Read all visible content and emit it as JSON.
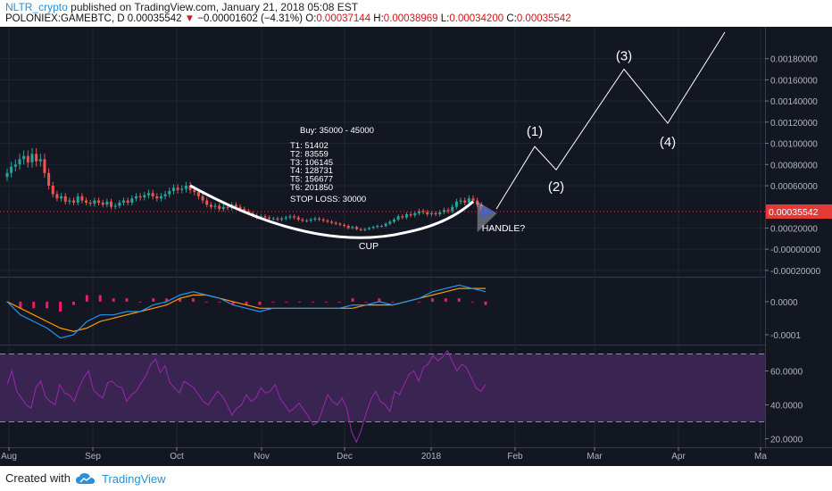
{
  "header": {
    "author": "NLTR_crypto",
    "published_text": "published on TradingView.com, January 21, 2018 05:08 EST",
    "symbol": "POLONIEX:GAMEBTC, D",
    "last": "0.00035542",
    "change_arrow": "▼",
    "change": "−0.00001602 (−4.31%)",
    "ohlc": {
      "o_label": "O:",
      "o": "0.00037144",
      "h_label": "H:",
      "h": "0.00038969",
      "l_label": "L:",
      "l": "0.00034200",
      "c_label": "C:",
      "c": "0.00035542"
    }
  },
  "footer": {
    "created_with": "Created with",
    "brand": "TradingView"
  },
  "colors": {
    "background": "#131722",
    "up_candle": "#26a69a",
    "down_candle": "#ef5350",
    "macd_line": "#2196f3",
    "signal_line": "#ff9800",
    "histogram": "#e91e63",
    "rsi_line": "#9c27b0",
    "rsi_band": "#3a2451",
    "price_label": "#e53935",
    "annotation": "#ffffff"
  },
  "chart_data": {
    "type": "candlestick",
    "x_tick_labels": [
      "Aug",
      "Sep",
      "Oct",
      "Nov",
      "Dec",
      "2018",
      "Feb",
      "Mar",
      "Apr",
      "Ma"
    ],
    "price_axis": {
      "ticks": [
        "0.00180000",
        "0.00160000",
        "0.00140000",
        "0.00120000",
        "0.00100000",
        "0.00080000",
        "0.00060000",
        "0.00020000",
        "-0.00000000",
        "-0.00020000"
      ],
      "tick_values": [
        0.0018,
        0.0016,
        0.0014,
        0.0012,
        0.001,
        0.0008,
        0.0006,
        0.0002,
        0.0,
        -0.0002
      ],
      "last_price_label": "0.00035542",
      "last_price": 0.00035542,
      "ylim": [
        -0.00026,
        0.00205
      ]
    },
    "price_series": {
      "name": "GAMEBTC",
      "closes": [
        0.00072,
        0.00078,
        0.0008,
        0.00085,
        0.00088,
        0.00082,
        0.0009,
        0.00083,
        0.00085,
        0.00072,
        0.0006,
        0.00052,
        0.00048,
        0.0005,
        0.00045,
        0.00046,
        0.00044,
        0.0005,
        0.00046,
        0.00044,
        0.00043,
        0.00046,
        0.00044,
        0.00042,
        0.00045,
        0.0004,
        0.00041,
        0.00044,
        0.00046,
        0.00044,
        0.00048,
        0.0005,
        0.00049,
        0.00051,
        0.00053,
        0.0005,
        0.00048,
        0.0005,
        0.00052,
        0.00055,
        0.00058,
        0.00056,
        0.00057,
        0.0006,
        0.00056,
        0.00054,
        0.0005,
        0.00046,
        0.00042,
        0.0004,
        0.00041,
        0.00038,
        0.0004,
        0.00039,
        0.00042,
        0.0004,
        0.00038,
        0.00036,
        0.00034,
        0.00032,
        0.0003,
        0.00031,
        0.0003,
        0.00029,
        0.00029,
        0.00028,
        0.00029,
        0.0003,
        0.00031,
        0.0003,
        0.00028,
        0.00027,
        0.00027,
        0.00028,
        0.00029,
        0.00028,
        0.00027,
        0.00026,
        0.00025,
        0.00024,
        0.00023,
        0.00022,
        0.0002,
        0.00021,
        0.00019,
        0.00018,
        0.00019,
        0.0002,
        0.00021,
        0.00022,
        0.00022,
        0.00024,
        0.00026,
        0.00028,
        0.00031,
        0.0003,
        0.00033,
        0.00032,
        0.00034,
        0.00036,
        0.00035,
        0.00033,
        0.00034,
        0.00033,
        0.00035,
        0.00037,
        0.00036,
        0.0004,
        0.00045,
        0.00046,
        0.00044,
        0.00048,
        0.00046,
        0.00042,
        0.00037,
        0.00036
      ]
    },
    "macd": {
      "axis_ticks": [
        "0.0000",
        "-0.0001"
      ],
      "axis_values": [
        0.0,
        -0.0001
      ],
      "ylim": [
        -0.00013,
        7e-05
      ],
      "macd_line": [
        0.0,
        -4e-05,
        -6e-05,
        -8e-05,
        -0.00011,
        -0.0001,
        -6e-05,
        -4e-05,
        -4e-05,
        -3e-05,
        -3e-05,
        -1e-05,
        0.0,
        2e-05,
        3e-05,
        2e-05,
        1e-05,
        -1e-05,
        -2e-05,
        -3e-05,
        -2e-05,
        -2e-05,
        -2e-05,
        -2e-05,
        -2e-05,
        -2e-05,
        -1e-05,
        -1e-05,
        0.0,
        -1e-05,
        0.0,
        1e-05,
        3e-05,
        4e-05,
        5e-05,
        4e-05,
        3e-05
      ],
      "signal_line": [
        0.0,
        -2e-05,
        -4e-05,
        -6e-05,
        -8e-05,
        -9e-05,
        -8e-05,
        -6e-05,
        -5e-05,
        -4e-05,
        -3e-05,
        -2e-05,
        -1e-05,
        1e-05,
        2e-05,
        2e-05,
        1e-05,
        0.0,
        -1e-05,
        -2e-05,
        -2e-05,
        -2e-05,
        -2e-05,
        -2e-05,
        -2e-05,
        -2e-05,
        -2e-05,
        -1e-05,
        -1e-05,
        -1e-05,
        0.0,
        1e-05,
        2e-05,
        3e-05,
        4e-05,
        4e-05,
        4e-05
      ],
      "histogram": [
        0.0,
        -2e-05,
        -2e-05,
        -2e-05,
        -3e-05,
        -1e-05,
        2e-05,
        2e-05,
        1e-05,
        1e-05,
        0.0,
        1e-05,
        1e-05,
        1e-05,
        1e-05,
        0.0,
        0.0,
        -1e-05,
        -1e-05,
        -1e-05,
        0.0,
        0.0,
        0.0,
        0.0,
        0.0,
        0.0,
        1e-05,
        0.0,
        1e-05,
        0.0,
        0.0,
        0.0,
        1e-05,
        1e-05,
        1e-05,
        0.0,
        -1e-05
      ]
    },
    "rsi": {
      "axis_ticks": [
        "60.0000",
        "40.0000",
        "20.0000"
      ],
      "axis_values": [
        60,
        40,
        20
      ],
      "band": [
        30,
        70
      ],
      "ylim": [
        15,
        75
      ],
      "values": [
        52,
        60,
        48,
        44,
        40,
        38,
        50,
        54,
        45,
        42,
        40,
        52,
        47,
        46,
        42,
        50,
        56,
        60,
        49,
        46,
        44,
        53,
        54,
        51,
        50,
        42,
        46,
        48,
        53,
        57,
        64,
        67,
        59,
        63,
        53,
        50,
        47,
        54,
        52,
        50,
        46,
        42,
        40,
        44,
        48,
        45,
        40,
        34,
        38,
        40,
        46,
        42,
        44,
        50,
        47,
        48,
        52,
        44,
        40,
        36,
        38,
        41,
        37,
        33,
        28,
        30,
        38,
        46,
        42,
        40,
        44,
        38,
        24,
        18,
        25,
        35,
        43,
        48,
        42,
        40,
        36,
        48,
        46,
        52,
        58,
        60,
        54,
        62,
        64,
        69,
        66,
        68,
        72,
        66,
        60,
        64,
        62,
        56,
        50,
        48,
        52
      ]
    },
    "annotations": {
      "buy": "Buy: 35000 - 45000",
      "targets": [
        "T1: 51402",
        "T2: 83559",
        "T3: 106145",
        "T4: 128731",
        "T5: 156677",
        "T6: 201850"
      ],
      "stop_loss": "STOP LOSS: 30000",
      "cup": "CUP",
      "handle": "HANDLE?",
      "waves": [
        "(1)",
        "(2)",
        "(3)",
        "(4)"
      ]
    }
  }
}
